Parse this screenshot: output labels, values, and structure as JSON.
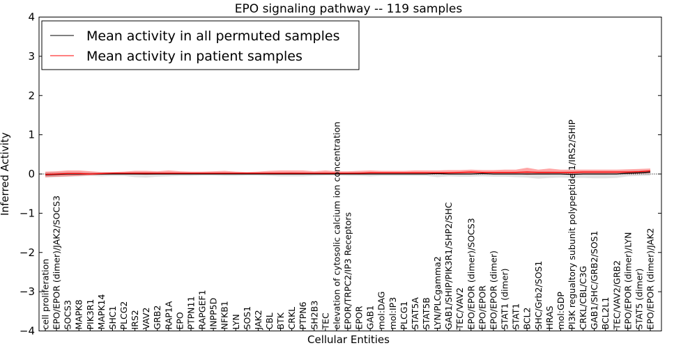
{
  "chart_data": {
    "type": "line",
    "title": "EPO signaling pathway -- 119 samples",
    "xlabel": "Cellular Entities",
    "ylabel": "Inferred Activity",
    "ylim": [
      -4,
      4
    ],
    "yticks": [
      -4,
      -3,
      -2,
      -1,
      0,
      1,
      2,
      3,
      4
    ],
    "ytick_labels": [
      "−4",
      "−3",
      "−2",
      "−1",
      "0",
      "1",
      "2",
      "3",
      "4"
    ],
    "legend": {
      "placement": "top-left",
      "entries": [
        {
          "label": "Mean activity in all permuted samples",
          "color": "#000000"
        },
        {
          "label": "Mean activity in patient samples",
          "color": "#ff0000"
        }
      ]
    },
    "categories": [
      "cell proliferation",
      "EPO/EPOR (dimer)/JAK2/SOCS3",
      "SOCS3",
      "MAPK8",
      "PIK3R1",
      "MAPK14",
      "SHC1",
      "PLCG2",
      "IRS2",
      "VAV2",
      "GRB2",
      "RAP1A",
      "EPO",
      "PTPN11",
      "RAPGEF1",
      "INPP5D",
      "NFKB1",
      "LYN",
      "SOS1",
      "JAK2",
      "CBL",
      "BTK",
      "CRKL",
      "PTPN6",
      "SH2B3",
      "TEC",
      "elevation of cytosolic calcium ion concentration",
      "EPOR/TRPC2/IP3 Receptors",
      "EPOR",
      "GAB1",
      "mol:DAG",
      "mol:IP3",
      "PLCG1",
      "STAT5A",
      "STAT5B",
      "LYN/PLCgamma2",
      "GAB1/SHIP/PIK3R1/SHP2/SHC",
      "TEC/VAV2",
      "EPO/EPOR (dimer)/SOCS3",
      "EPO/EPOR",
      "EPO/EPOR (dimer)",
      "STAT1 (dimer)",
      "STAT1",
      "BCL2",
      "SHC/Grb2/SOS1",
      "HRAS",
      "mol:GDP",
      "PI3K regualtory subunit polypeptide 1/IRS2/SHIP",
      "CRKL/CBL/C3G",
      "GAB1/SHC/GRB2/SOS1",
      "BCL2L1",
      "TEC/VAV2/GRB2",
      "EPO/EPOR (dimer)/LYN",
      "STAT5 (dimer)",
      "EPO/EPOR (dimer)/JAK2"
    ],
    "series": [
      {
        "name": "Mean activity in all permuted samples",
        "color": "#000000",
        "values": [
          -0.02,
          -0.01,
          0,
          0,
          0,
          0,
          0,
          0,
          0,
          0,
          0,
          0,
          0,
          0,
          0,
          0,
          0,
          0,
          0,
          0,
          0,
          0,
          0,
          0,
          0,
          0,
          0,
          0,
          0,
          0,
          0,
          0,
          0,
          0,
          0,
          0.01,
          0,
          0,
          0,
          0.01,
          0,
          0,
          0,
          0,
          0,
          0,
          0,
          -0.01,
          0,
          0,
          0,
          0,
          0.02,
          0.03,
          0.05
        ],
        "band_lower": [
          -0.09,
          -0.08,
          -0.07,
          -0.06,
          -0.05,
          -0.06,
          -0.05,
          -0.05,
          -0.08,
          -0.09,
          -0.07,
          -0.06,
          -0.05,
          -0.05,
          -0.04,
          -0.04,
          -0.05,
          -0.05,
          -0.04,
          -0.04,
          -0.05,
          -0.06,
          -0.06,
          -0.06,
          -0.05,
          -0.04,
          -0.04,
          -0.05,
          -0.05,
          -0.06,
          -0.05,
          -0.05,
          -0.05,
          -0.05,
          -0.05,
          -0.08,
          -0.06,
          -0.07,
          -0.07,
          -0.06,
          -0.07,
          -0.07,
          -0.08,
          -0.09,
          -0.12,
          -0.1,
          -0.09,
          -0.1,
          -0.1,
          -0.11,
          -0.11,
          -0.1,
          -0.06,
          -0.05,
          -0.04
        ],
        "band_upper": [
          0.04,
          0.05,
          0.05,
          0.05,
          0.04,
          0.04,
          0.04,
          0.04,
          0.05,
          0.05,
          0.05,
          0.04,
          0.04,
          0.04,
          0.04,
          0.04,
          0.04,
          0.04,
          0.04,
          0.04,
          0.04,
          0.04,
          0.05,
          0.04,
          0.04,
          0.04,
          0.04,
          0.04,
          0.05,
          0.05,
          0.04,
          0.04,
          0.04,
          0.04,
          0.04,
          0.05,
          0.05,
          0.05,
          0.06,
          0.05,
          0.05,
          0.05,
          0.06,
          0.07,
          0.07,
          0.07,
          0.06,
          0.07,
          0.07,
          0.07,
          0.07,
          0.07,
          0.08,
          0.09,
          0.1
        ]
      },
      {
        "name": "Mean activity in patient samples",
        "color": "#ff0000",
        "values": [
          -0.01,
          0,
          0.01,
          0.01,
          0,
          0.01,
          0.02,
          0.02,
          0.02,
          0.02,
          0.02,
          0.02,
          0.02,
          0.02,
          0.02,
          0.02,
          0.02,
          0.02,
          0.02,
          0.02,
          0.02,
          0.02,
          0.02,
          0.02,
          0.02,
          0.02,
          0.02,
          0.02,
          0.02,
          0.03,
          0.03,
          0.03,
          0.03,
          0.03,
          0.03,
          0.03,
          0.03,
          0.04,
          0.05,
          0.04,
          0.04,
          0.04,
          0.04,
          0.05,
          0.04,
          0.04,
          0.04,
          0.04,
          0.05,
          0.05,
          0.05,
          0.05,
          0.05,
          0.06,
          0.08
        ],
        "band_lower": [
          -0.08,
          -0.07,
          -0.06,
          -0.05,
          -0.03,
          -0.02,
          -0.01,
          -0.01,
          -0.01,
          -0.02,
          -0.01,
          -0.01,
          0,
          0,
          0,
          0,
          0,
          0,
          0,
          0,
          -0.01,
          -0.01,
          -0.01,
          -0.01,
          0,
          0,
          0,
          0,
          -0.01,
          0,
          0,
          0,
          0,
          0,
          0,
          0,
          0,
          0,
          0,
          0,
          0,
          0,
          0,
          -0.02,
          -0.01,
          -0.01,
          0,
          -0.01,
          -0.01,
          -0.01,
          -0.01,
          0,
          0,
          0.01,
          0.02
        ],
        "band_upper": [
          0.06,
          0.07,
          0.09,
          0.09,
          0.07,
          0.05,
          0.05,
          0.06,
          0.08,
          0.08,
          0.07,
          0.09,
          0.07,
          0.06,
          0.06,
          0.07,
          0.08,
          0.06,
          0.05,
          0.06,
          0.08,
          0.09,
          0.09,
          0.09,
          0.07,
          0.09,
          0.07,
          0.07,
          0.08,
          0.09,
          0.08,
          0.08,
          0.08,
          0.09,
          0.09,
          0.09,
          0.1,
          0.1,
          0.11,
          0.1,
          0.1,
          0.11,
          0.11,
          0.16,
          0.11,
          0.14,
          0.11,
          0.11,
          0.11,
          0.11,
          0.11,
          0.11,
          0.12,
          0.13,
          0.14
        ]
      }
    ]
  }
}
